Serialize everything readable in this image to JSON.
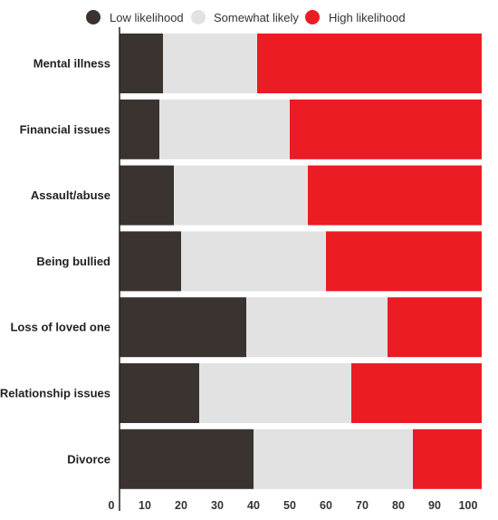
{
  "chart_data": {
    "type": "bar",
    "orientation": "horizontal",
    "stacked": true,
    "categories": [
      "Mental illness",
      "Financial issues",
      "Assault/abuse",
      "Being bullied",
      "Loss of loved one",
      "Relationship issues",
      "Divorce"
    ],
    "series": [
      {
        "name": "Low likelihood",
        "color": "#3a3330",
        "values": [
          12,
          11,
          15,
          17,
          35,
          22,
          37
        ]
      },
      {
        "name": "Somewhat likely",
        "color": "#e2e2e2",
        "values": [
          26,
          36,
          37,
          40,
          39,
          42,
          44
        ]
      },
      {
        "name": "High likelihood",
        "color": "#ec1c24",
        "values": [
          62,
          53,
          48,
          43,
          26,
          36,
          19
        ]
      }
    ],
    "xlim": [
      0,
      100
    ],
    "xticks": [
      0,
      10,
      20,
      30,
      40,
      50,
      60,
      70,
      80,
      90,
      100
    ],
    "legend_position": "top",
    "grid": false,
    "title": "",
    "xlabel": "",
    "ylabel": ""
  }
}
